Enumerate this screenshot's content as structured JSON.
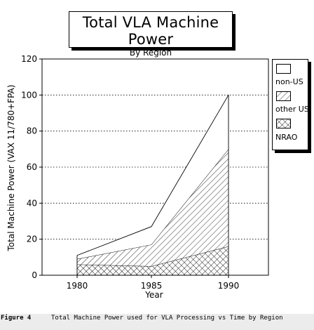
{
  "chart_data": {
    "type": "area",
    "title": "Total VLA Machine Power",
    "subtitle": "By Region",
    "xlabel": "Year",
    "ylabel": "Total Machine Power (VAX 11/780+FPA)",
    "x": [
      1980,
      1985,
      1990
    ],
    "x_tick_labels": [
      "1980",
      "1985",
      "1990"
    ],
    "ylim": [
      0,
      120
    ],
    "y_ticks": [
      0,
      20,
      40,
      60,
      80,
      100,
      120
    ],
    "stacked": true,
    "grid": "horizontal dotted",
    "legend_position": "right",
    "series": [
      {
        "name": "NRAO",
        "values": [
          6,
          5,
          16
        ],
        "pattern": "crosshatch"
      },
      {
        "name": "other US",
        "values": [
          3,
          12,
          54
        ],
        "pattern": "diagonal"
      },
      {
        "name": "non-US",
        "values": [
          2,
          10,
          30
        ],
        "pattern": "white"
      }
    ]
  },
  "legend": {
    "items": [
      {
        "label": "non-US"
      },
      {
        "label": "other US"
      },
      {
        "label": "NRAO"
      }
    ]
  },
  "caption": {
    "figure_label": "Figure 4",
    "text": "Total Machine Power used for VLA Processing vs Time by Region"
  }
}
